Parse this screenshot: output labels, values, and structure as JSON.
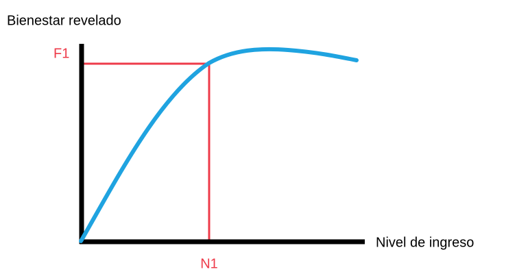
{
  "y_axis_label": "Bienestar revelado",
  "x_axis_label": "Nivel de ingreso",
  "y_marker": "F1",
  "x_marker": "N1"
}
